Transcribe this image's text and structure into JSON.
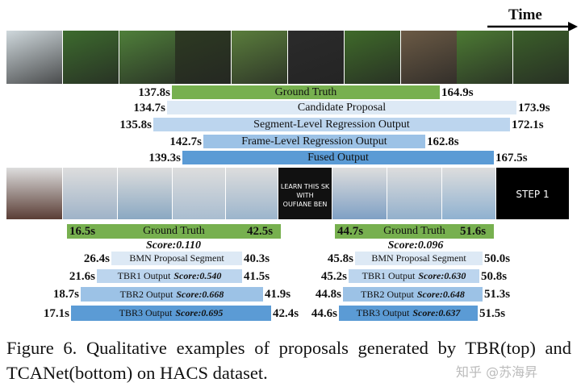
{
  "header": {
    "time_label": "Time"
  },
  "frames": {
    "bottom_texts": {
      "learn": [
        "LEARN THIS SK",
        "WITH",
        "OUFIANE BEN"
      ],
      "step": "STEP 1"
    }
  },
  "top": {
    "rows": [
      {
        "start": "137.8s",
        "label": "Ground Truth",
        "end": "164.9s"
      },
      {
        "start": "134.7s",
        "label": "Candidate Proposal",
        "end": "173.9s"
      },
      {
        "start": "135.8s",
        "label": "Segment-Level Regression Output",
        "end": "172.1s"
      },
      {
        "start": "142.7s",
        "label": "Frame-Level Regression Output",
        "end": "162.8s"
      },
      {
        "start": "139.3s",
        "label": "Fused Output",
        "end": "167.5s"
      }
    ]
  },
  "bottom": {
    "panels": [
      {
        "gt": {
          "start": "16.5s",
          "label": "Ground Truth",
          "end": "42.5s"
        },
        "gt_score": "Score:0.110",
        "rows": [
          {
            "start": "26.4s",
            "label": "BMN Proposal Segment",
            "end": "40.3s"
          },
          {
            "start": "21.6s",
            "label": "TBR1 Output",
            "score": "Score:0.540",
            "end": "41.5s"
          },
          {
            "start": "18.7s",
            "label": "TBR2 Output",
            "score": "Score:0.668",
            "end": "41.9s"
          },
          {
            "start": "17.1s",
            "label": "TBR3 Output",
            "score": "Score:0.695",
            "end": "42.4s"
          }
        ]
      },
      {
        "gt": {
          "start": "44.7s",
          "label": "Ground Truth",
          "end": "51.6s"
        },
        "gt_score": "Score:0.096",
        "rows": [
          {
            "start": "45.8s",
            "label": "BMN Proposal Segment",
            "end": "50.0s"
          },
          {
            "start": "45.2s",
            "label": "TBR1 Output",
            "score": "Score:0.630",
            "end": "50.8s"
          },
          {
            "start": "44.8s",
            "label": "TBR2 Output",
            "score": "Score:0.648",
            "end": "51.3s"
          },
          {
            "start": "44.6s",
            "label": "TBR3 Output",
            "score": "Score:0.637",
            "end": "51.5s"
          }
        ]
      }
    ]
  },
  "caption": "Figure 6. Qualitative examples of proposals generated by TBR(top) and TCANet(bottom) on HACS dataset.",
  "watermark": "知乎 @苏海昇"
}
